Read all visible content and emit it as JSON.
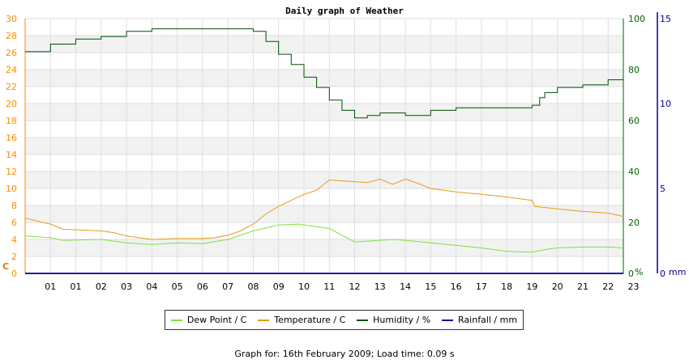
{
  "chart_data": {
    "type": "line",
    "title": "Daily graph of Weather",
    "x_tick_labels": [
      "01",
      "01",
      "02",
      "03",
      "04",
      "05",
      "06",
      "07",
      "08",
      "09",
      "10",
      "11",
      "12",
      "13",
      "14",
      "15",
      "16",
      "17",
      "18",
      "19",
      "20",
      "21",
      "22",
      "23"
    ],
    "x_range_hours": [
      0,
      23.6
    ],
    "left_axis": {
      "unit_label": "C",
      "range": [
        0,
        30
      ],
      "ticks": [
        0,
        2,
        4,
        6,
        8,
        10,
        12,
        14,
        16,
        18,
        20,
        22,
        24,
        26,
        28,
        30
      ]
    },
    "right_axis_humidity": {
      "unit_label": "%",
      "range": [
        0,
        100
      ],
      "ticks": [
        0,
        20,
        40,
        60,
        80,
        100
      ]
    },
    "right_axis_rainfall": {
      "unit_label": "mm",
      "range": [
        0,
        15
      ],
      "ticks": [
        0,
        5,
        10,
        15
      ]
    },
    "grid": true,
    "legend_position": "bottom",
    "series": [
      {
        "name": "Dew Point / C",
        "axis": "left",
        "color": "#80e040",
        "points": [
          [
            0,
            4.4
          ],
          [
            1,
            4.2
          ],
          [
            1.5,
            3.9
          ],
          [
            3,
            4.0
          ],
          [
            4,
            3.6
          ],
          [
            5,
            3.4
          ],
          [
            6,
            3.6
          ],
          [
            7,
            3.5
          ],
          [
            8,
            4.0
          ],
          [
            9,
            5.0
          ],
          [
            10,
            5.7
          ],
          [
            10.8,
            5.8
          ],
          [
            11.5,
            5.5
          ],
          [
            12,
            5.3
          ],
          [
            12.5,
            4.5
          ],
          [
            13,
            3.7
          ],
          [
            13.5,
            3.8
          ],
          [
            14,
            3.9
          ],
          [
            14.5,
            4.0
          ],
          [
            15,
            3.9
          ],
          [
            16,
            3.6
          ],
          [
            17,
            3.3
          ],
          [
            18,
            3.0
          ],
          [
            19,
            2.6
          ],
          [
            20,
            2.5
          ],
          [
            20.5,
            2.8
          ],
          [
            21,
            3.0
          ],
          [
            22,
            3.1
          ],
          [
            23,
            3.1
          ],
          [
            23.6,
            3.0
          ]
        ]
      },
      {
        "name": "Temperature / C",
        "axis": "left",
        "color": "#e89a1a",
        "points": [
          [
            0,
            6.5
          ],
          [
            1,
            5.8
          ],
          [
            1.5,
            5.2
          ],
          [
            3,
            5.0
          ],
          [
            3.5,
            4.8
          ],
          [
            4,
            4.4
          ],
          [
            5,
            4.0
          ],
          [
            6,
            4.1
          ],
          [
            7,
            4.1
          ],
          [
            7.5,
            4.2
          ],
          [
            8,
            4.5
          ],
          [
            8.5,
            5.0
          ],
          [
            9,
            5.8
          ],
          [
            9.5,
            7.0
          ],
          [
            10,
            7.9
          ],
          [
            10.5,
            8.6
          ],
          [
            11,
            9.3
          ],
          [
            11.5,
            9.8
          ],
          [
            12,
            11.0
          ],
          [
            12.5,
            10.9
          ],
          [
            13,
            10.8
          ],
          [
            13.5,
            10.7
          ],
          [
            14,
            11.1
          ],
          [
            14.5,
            10.5
          ],
          [
            15,
            11.1
          ],
          [
            15.5,
            10.6
          ],
          [
            16,
            10.0
          ],
          [
            17,
            9.6
          ],
          [
            18,
            9.3
          ],
          [
            19,
            9.0
          ],
          [
            20,
            8.6
          ],
          [
            20.1,
            7.9
          ],
          [
            21,
            7.6
          ],
          [
            22,
            7.3
          ],
          [
            23,
            7.1
          ],
          [
            23.6,
            6.7
          ]
        ]
      },
      {
        "name": "Humidity / %",
        "axis": "right_humidity",
        "color": "#005000",
        "points": [
          [
            0,
            87
          ],
          [
            1,
            90
          ],
          [
            2,
            92
          ],
          [
            3,
            93
          ],
          [
            4,
            95
          ],
          [
            5,
            96
          ],
          [
            6,
            96
          ],
          [
            7,
            96
          ],
          [
            8,
            96
          ],
          [
            9,
            95
          ],
          [
            9.5,
            91
          ],
          [
            10,
            86
          ],
          [
            10.5,
            82
          ],
          [
            11,
            77
          ],
          [
            11.5,
            73
          ],
          [
            12,
            68
          ],
          [
            12.5,
            64
          ],
          [
            13,
            61
          ],
          [
            13.5,
            62
          ],
          [
            14,
            63
          ],
          [
            15,
            62
          ],
          [
            16,
            64
          ],
          [
            17,
            65
          ],
          [
            18,
            65
          ],
          [
            19,
            65
          ],
          [
            20,
            66
          ],
          [
            20.3,
            69
          ],
          [
            20.5,
            71
          ],
          [
            21,
            73
          ],
          [
            22,
            74
          ],
          [
            23,
            76
          ],
          [
            23.6,
            77
          ]
        ]
      },
      {
        "name": "Rainfall / mm",
        "axis": "right_rainfall",
        "color": "#00008b",
        "points": [
          [
            0,
            0
          ],
          [
            23.6,
            0
          ]
        ]
      }
    ]
  },
  "footer": {
    "text": "Graph for: 16th February 2009; Load time: 0.09 s"
  }
}
